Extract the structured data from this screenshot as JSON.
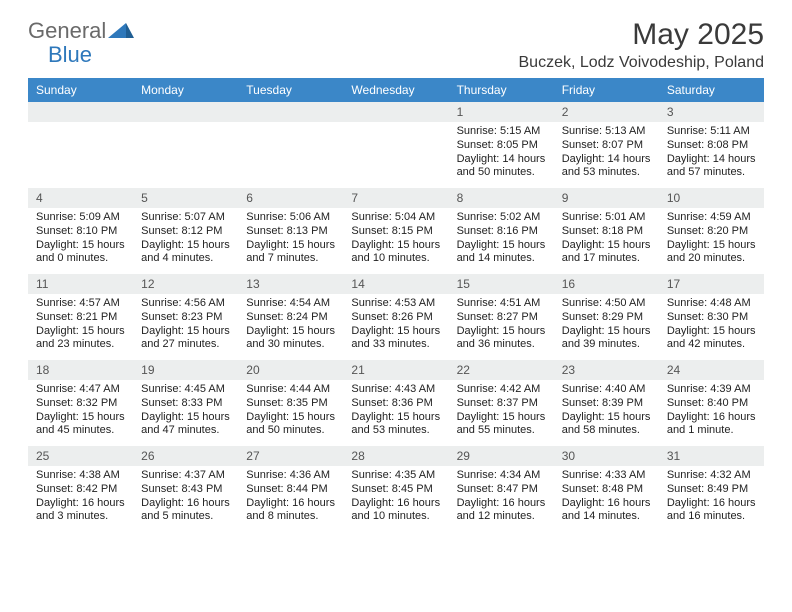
{
  "logo": {
    "general": "General",
    "blue": "Blue"
  },
  "title": "May 2025",
  "location": "Buczek, Lodz Voivodeship, Poland",
  "colors": {
    "header_bg": "#3b87c8",
    "header_text": "#ffffff",
    "daynum_bg": "#eceeee",
    "logo_gray": "#6a6a6a",
    "logo_blue": "#2e78bb"
  },
  "weekdays": [
    "Sunday",
    "Monday",
    "Tuesday",
    "Wednesday",
    "Thursday",
    "Friday",
    "Saturday"
  ],
  "weeks": [
    [
      {
        "day": "",
        "sunrise": "",
        "sunset": "",
        "daylight": ""
      },
      {
        "day": "",
        "sunrise": "",
        "sunset": "",
        "daylight": ""
      },
      {
        "day": "",
        "sunrise": "",
        "sunset": "",
        "daylight": ""
      },
      {
        "day": "",
        "sunrise": "",
        "sunset": "",
        "daylight": ""
      },
      {
        "day": "1",
        "sunrise": "Sunrise: 5:15 AM",
        "sunset": "Sunset: 8:05 PM",
        "daylight": "Daylight: 14 hours and 50 minutes."
      },
      {
        "day": "2",
        "sunrise": "Sunrise: 5:13 AM",
        "sunset": "Sunset: 8:07 PM",
        "daylight": "Daylight: 14 hours and 53 minutes."
      },
      {
        "day": "3",
        "sunrise": "Sunrise: 5:11 AM",
        "sunset": "Sunset: 8:08 PM",
        "daylight": "Daylight: 14 hours and 57 minutes."
      }
    ],
    [
      {
        "day": "4",
        "sunrise": "Sunrise: 5:09 AM",
        "sunset": "Sunset: 8:10 PM",
        "daylight": "Daylight: 15 hours and 0 minutes."
      },
      {
        "day": "5",
        "sunrise": "Sunrise: 5:07 AM",
        "sunset": "Sunset: 8:12 PM",
        "daylight": "Daylight: 15 hours and 4 minutes."
      },
      {
        "day": "6",
        "sunrise": "Sunrise: 5:06 AM",
        "sunset": "Sunset: 8:13 PM",
        "daylight": "Daylight: 15 hours and 7 minutes."
      },
      {
        "day": "7",
        "sunrise": "Sunrise: 5:04 AM",
        "sunset": "Sunset: 8:15 PM",
        "daylight": "Daylight: 15 hours and 10 minutes."
      },
      {
        "day": "8",
        "sunrise": "Sunrise: 5:02 AM",
        "sunset": "Sunset: 8:16 PM",
        "daylight": "Daylight: 15 hours and 14 minutes."
      },
      {
        "day": "9",
        "sunrise": "Sunrise: 5:01 AM",
        "sunset": "Sunset: 8:18 PM",
        "daylight": "Daylight: 15 hours and 17 minutes."
      },
      {
        "day": "10",
        "sunrise": "Sunrise: 4:59 AM",
        "sunset": "Sunset: 8:20 PM",
        "daylight": "Daylight: 15 hours and 20 minutes."
      }
    ],
    [
      {
        "day": "11",
        "sunrise": "Sunrise: 4:57 AM",
        "sunset": "Sunset: 8:21 PM",
        "daylight": "Daylight: 15 hours and 23 minutes."
      },
      {
        "day": "12",
        "sunrise": "Sunrise: 4:56 AM",
        "sunset": "Sunset: 8:23 PM",
        "daylight": "Daylight: 15 hours and 27 minutes."
      },
      {
        "day": "13",
        "sunrise": "Sunrise: 4:54 AM",
        "sunset": "Sunset: 8:24 PM",
        "daylight": "Daylight: 15 hours and 30 minutes."
      },
      {
        "day": "14",
        "sunrise": "Sunrise: 4:53 AM",
        "sunset": "Sunset: 8:26 PM",
        "daylight": "Daylight: 15 hours and 33 minutes."
      },
      {
        "day": "15",
        "sunrise": "Sunrise: 4:51 AM",
        "sunset": "Sunset: 8:27 PM",
        "daylight": "Daylight: 15 hours and 36 minutes."
      },
      {
        "day": "16",
        "sunrise": "Sunrise: 4:50 AM",
        "sunset": "Sunset: 8:29 PM",
        "daylight": "Daylight: 15 hours and 39 minutes."
      },
      {
        "day": "17",
        "sunrise": "Sunrise: 4:48 AM",
        "sunset": "Sunset: 8:30 PM",
        "daylight": "Daylight: 15 hours and 42 minutes."
      }
    ],
    [
      {
        "day": "18",
        "sunrise": "Sunrise: 4:47 AM",
        "sunset": "Sunset: 8:32 PM",
        "daylight": "Daylight: 15 hours and 45 minutes."
      },
      {
        "day": "19",
        "sunrise": "Sunrise: 4:45 AM",
        "sunset": "Sunset: 8:33 PM",
        "daylight": "Daylight: 15 hours and 47 minutes."
      },
      {
        "day": "20",
        "sunrise": "Sunrise: 4:44 AM",
        "sunset": "Sunset: 8:35 PM",
        "daylight": "Daylight: 15 hours and 50 minutes."
      },
      {
        "day": "21",
        "sunrise": "Sunrise: 4:43 AM",
        "sunset": "Sunset: 8:36 PM",
        "daylight": "Daylight: 15 hours and 53 minutes."
      },
      {
        "day": "22",
        "sunrise": "Sunrise: 4:42 AM",
        "sunset": "Sunset: 8:37 PM",
        "daylight": "Daylight: 15 hours and 55 minutes."
      },
      {
        "day": "23",
        "sunrise": "Sunrise: 4:40 AM",
        "sunset": "Sunset: 8:39 PM",
        "daylight": "Daylight: 15 hours and 58 minutes."
      },
      {
        "day": "24",
        "sunrise": "Sunrise: 4:39 AM",
        "sunset": "Sunset: 8:40 PM",
        "daylight": "Daylight: 16 hours and 1 minute."
      }
    ],
    [
      {
        "day": "25",
        "sunrise": "Sunrise: 4:38 AM",
        "sunset": "Sunset: 8:42 PM",
        "daylight": "Daylight: 16 hours and 3 minutes."
      },
      {
        "day": "26",
        "sunrise": "Sunrise: 4:37 AM",
        "sunset": "Sunset: 8:43 PM",
        "daylight": "Daylight: 16 hours and 5 minutes."
      },
      {
        "day": "27",
        "sunrise": "Sunrise: 4:36 AM",
        "sunset": "Sunset: 8:44 PM",
        "daylight": "Daylight: 16 hours and 8 minutes."
      },
      {
        "day": "28",
        "sunrise": "Sunrise: 4:35 AM",
        "sunset": "Sunset: 8:45 PM",
        "daylight": "Daylight: 16 hours and 10 minutes."
      },
      {
        "day": "29",
        "sunrise": "Sunrise: 4:34 AM",
        "sunset": "Sunset: 8:47 PM",
        "daylight": "Daylight: 16 hours and 12 minutes."
      },
      {
        "day": "30",
        "sunrise": "Sunrise: 4:33 AM",
        "sunset": "Sunset: 8:48 PM",
        "daylight": "Daylight: 16 hours and 14 minutes."
      },
      {
        "day": "31",
        "sunrise": "Sunrise: 4:32 AM",
        "sunset": "Sunset: 8:49 PM",
        "daylight": "Daylight: 16 hours and 16 minutes."
      }
    ]
  ]
}
